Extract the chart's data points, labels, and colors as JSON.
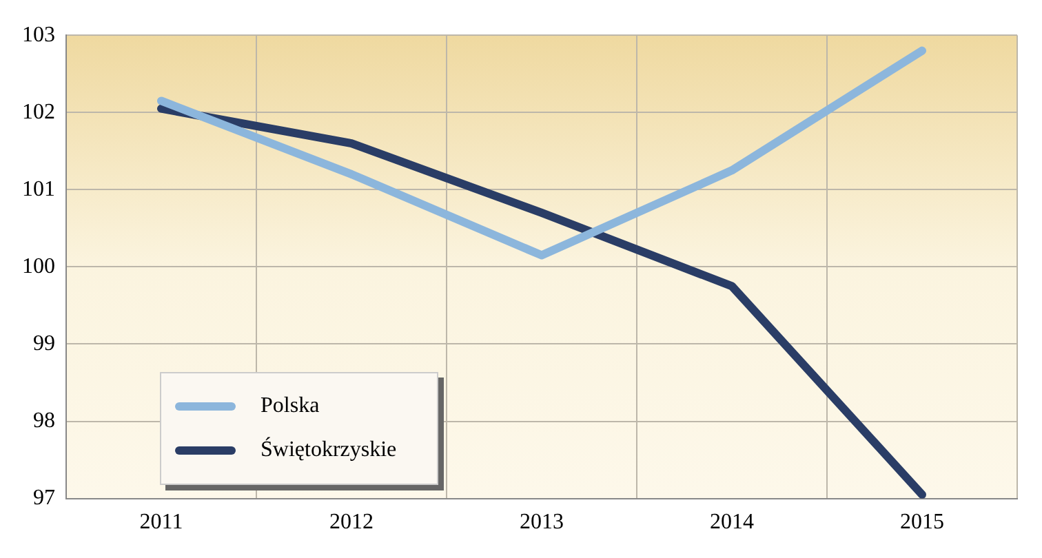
{
  "chart_data": {
    "type": "line",
    "categories": [
      "2011",
      "2012",
      "2013",
      "2014",
      "2015"
    ],
    "series": [
      {
        "name": "Polska",
        "color": "#8cb6dc",
        "values": [
          102.15,
          101.2,
          100.15,
          101.25,
          102.8
        ]
      },
      {
        "name": "Świętokrzyskie",
        "color": "#2a3d66",
        "values": [
          102.05,
          101.6,
          100.7,
          99.75,
          97.05
        ]
      }
    ],
    "ylim": [
      97,
      103
    ],
    "yticks": [
      97,
      98,
      99,
      100,
      101,
      102,
      103
    ],
    "grid": true,
    "legend": "bottom left",
    "marker": "none",
    "line_style": "solid"
  }
}
